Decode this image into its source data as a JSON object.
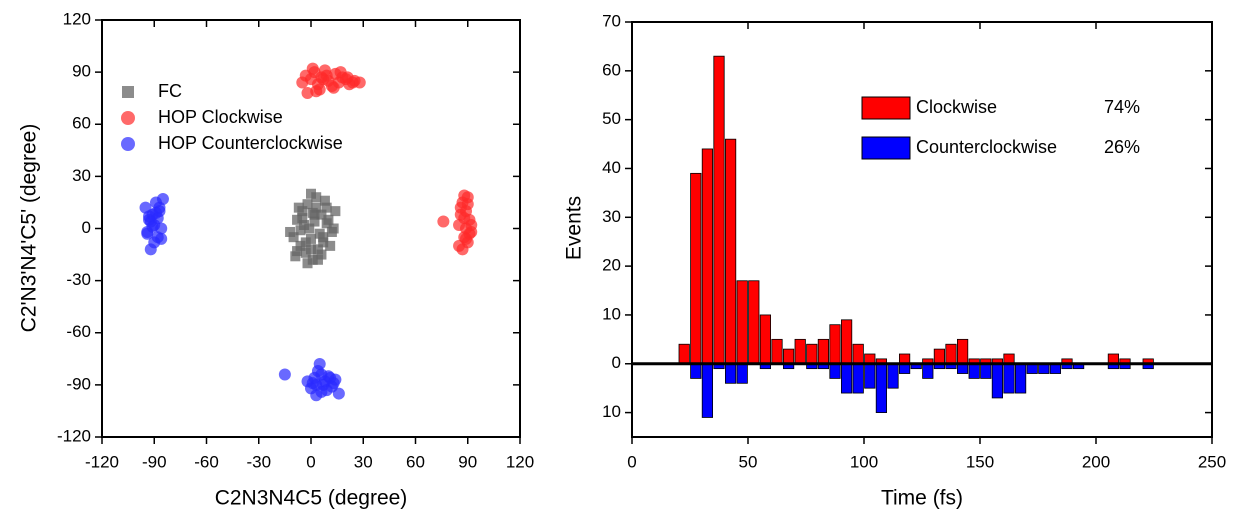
{
  "chart_data": [
    {
      "type": "scatter",
      "xlabel": "C2N3N4C5 (degree)",
      "ylabel": "C2'N3'N4'C5' (degree)",
      "xlim": [
        -120,
        120
      ],
      "xticks": [
        -120,
        -90,
        -60,
        -30,
        0,
        30,
        60,
        90,
        120
      ],
      "ylim": [
        -120,
        120
      ],
      "yticks": [
        -120,
        -90,
        -60,
        -30,
        0,
        30,
        60,
        90,
        120
      ],
      "legend": "upper left",
      "series": [
        {
          "name": "FC",
          "color": "#666666",
          "marker": "square",
          "x": [
            -8,
            -5,
            -2,
            0,
            3,
            6,
            9,
            12,
            -10,
            -6,
            -3,
            1,
            4,
            7,
            10,
            13,
            -9,
            -4,
            0,
            5,
            8,
            11,
            -7,
            -2,
            2,
            6,
            -12,
            14,
            -1,
            3,
            -5,
            7,
            0,
            2,
            -3,
            9,
            -6,
            4,
            1,
            -8
          ],
          "values": [
            5,
            10,
            14,
            20,
            12,
            8,
            3,
            -2,
            -5,
            -10,
            -14,
            -18,
            -12,
            -8,
            5,
            0,
            -16,
            2,
            -6,
            -3,
            16,
            -10,
            12,
            -20,
            8,
            -15,
            -2,
            10,
            0,
            18,
            6,
            -5,
            -12,
            4,
            -8,
            12,
            -1,
            -18,
            9,
            -13
          ]
        },
        {
          "name": "HOP Clockwise",
          "color": "#ff2a2a",
          "marker": "circle",
          "x": [
            -5,
            -3,
            0,
            2,
            4,
            6,
            8,
            10,
            12,
            14,
            16,
            18,
            20,
            22,
            25,
            28,
            -2,
            1,
            5,
            9,
            13,
            17,
            21,
            24,
            7,
            3,
            76,
            85,
            86,
            87,
            88,
            88,
            89,
            89,
            90,
            90,
            91,
            91,
            92,
            87,
            86,
            89,
            90,
            88,
            92,
            85
          ],
          "values": [
            84,
            88,
            86,
            90,
            83,
            87,
            91,
            85,
            82,
            89,
            84,
            87,
            86,
            83,
            85,
            84,
            78,
            92,
            80,
            88,
            81,
            90,
            87,
            84,
            86,
            79,
            4,
            -10,
            8,
            15,
            -5,
            19,
            0,
            10,
            -8,
            14,
            5,
            -3,
            2,
            -12,
            12,
            -6,
            18,
            6,
            -2,
            2
          ]
        },
        {
          "name": "HOP Counterclockwise",
          "color": "#2a2aff",
          "marker": "circle",
          "x": [
            -95,
            -94,
            -93,
            -92,
            -91,
            -90,
            -89,
            -88,
            -87,
            -86,
            -85,
            -90,
            -92,
            -88,
            -94,
            -86,
            -89,
            -91,
            -87,
            -93,
            -15,
            -2,
            0,
            2,
            3,
            5,
            6,
            8,
            10,
            12,
            14,
            16,
            4,
            7,
            1,
            9,
            11,
            3,
            6,
            13
          ],
          "values": [
            12,
            -2,
            5,
            -12,
            8,
            2,
            15,
            -5,
            10,
            0,
            17,
            -8,
            4,
            6,
            -3,
            -6,
            9,
            1,
            12,
            7,
            -84,
            -88,
            -92,
            -86,
            -90,
            -78,
            -94,
            -88,
            -85,
            -91,
            -87,
            -95,
            -82,
            -90,
            -89,
            -93,
            -86,
            -96,
            -84,
            -89
          ]
        }
      ]
    },
    {
      "type": "histogram",
      "xlabel": "Time (fs)",
      "ylabel": "Events",
      "xlim": [
        0,
        250
      ],
      "xticks": [
        0,
        50,
        100,
        150,
        200,
        250
      ],
      "ylim": [
        -15,
        70
      ],
      "yticks": [
        {
          "value": -10,
          "label": "10"
        },
        0,
        10,
        20,
        30,
        40,
        50,
        60,
        70
      ],
      "legend": "upper right",
      "bins": [
        20,
        25,
        30,
        35,
        40,
        45,
        50,
        55,
        60,
        65,
        70,
        75,
        80,
        85,
        90,
        95,
        100,
        105,
        110,
        115,
        120,
        125,
        130,
        135,
        140,
        145,
        150,
        155,
        160,
        165,
        170,
        175,
        180,
        185,
        190,
        195,
        200,
        205,
        210,
        215,
        220,
        225
      ],
      "series": [
        {
          "name": "Clockwise",
          "share": "74%",
          "color": "#ff0000",
          "values": [
            4,
            39,
            44,
            63,
            46,
            17,
            17,
            10,
            5,
            3,
            5,
            4,
            5,
            8,
            9,
            4,
            2,
            1,
            0,
            2,
            0,
            1,
            3,
            4,
            5,
            1,
            1,
            1,
            2,
            0,
            0,
            0,
            0,
            1,
            0,
            0,
            0,
            2,
            1,
            0,
            1
          ]
        },
        {
          "name": "Counterclockwise",
          "share": "26%",
          "color": "#0000ff",
          "values": [
            0,
            -3,
            -11,
            -1,
            -4,
            -4,
            0,
            -1,
            0,
            -1,
            0,
            -1,
            -1,
            -3,
            -6,
            -6,
            -5,
            -10,
            -5,
            -2,
            -1,
            -3,
            -1,
            -1,
            -2,
            -3,
            -3,
            -7,
            -6,
            -6,
            -2,
            -2,
            -2,
            -1,
            -1,
            0,
            0,
            -1,
            -1,
            0,
            -1
          ]
        }
      ]
    }
  ]
}
